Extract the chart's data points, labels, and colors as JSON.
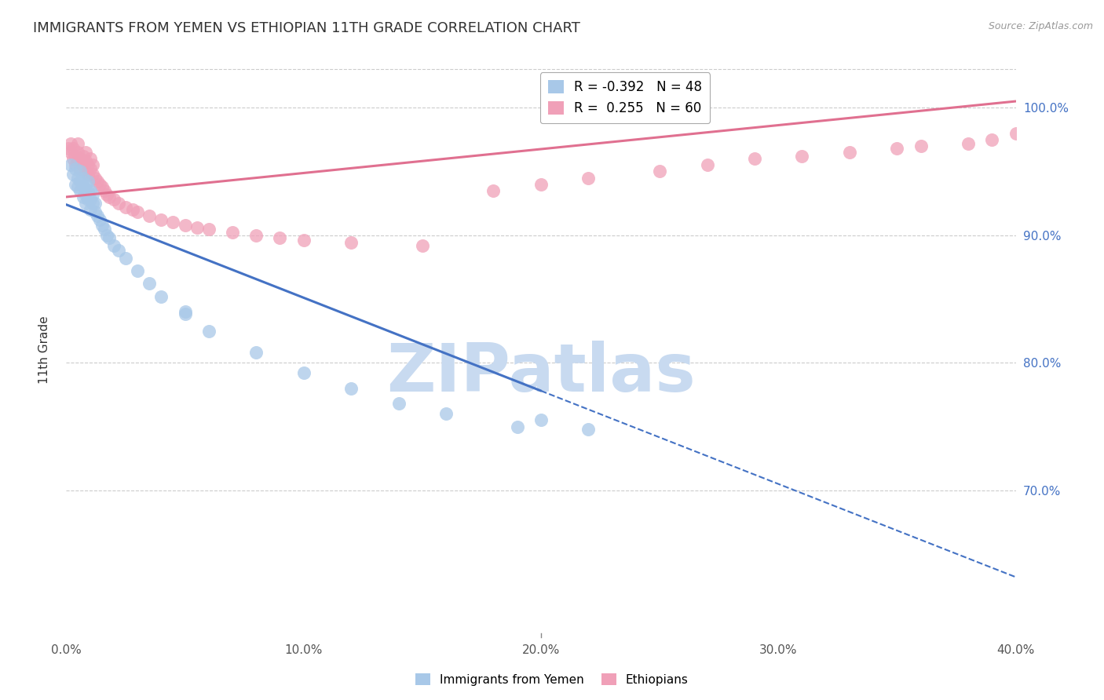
{
  "title": "IMMIGRANTS FROM YEMEN VS ETHIOPIAN 11TH GRADE CORRELATION CHART",
  "source": "Source: ZipAtlas.com",
  "ylabel": "11th Grade",
  "xmin": 0.0,
  "xmax": 0.4,
  "ymin": 0.585,
  "ymax": 1.035,
  "yticks": [
    0.7,
    0.8,
    0.9,
    1.0
  ],
  "ytick_labels": [
    "70.0%",
    "80.0%",
    "90.0%",
    "100.0%"
  ],
  "xticks": [
    0.0,
    0.1,
    0.2,
    0.3,
    0.4
  ],
  "xtick_labels": [
    "0.0%",
    "10.0%",
    "20.0%",
    "30.0%",
    "40.0%"
  ],
  "blue_label": "Immigrants from Yemen",
  "pink_label": "Ethiopians",
  "blue_R": -0.392,
  "blue_N": 48,
  "pink_R": 0.255,
  "pink_N": 60,
  "blue_color": "#a8c8e8",
  "pink_color": "#f0a0b8",
  "blue_line_color": "#4472c4",
  "pink_line_color": "#e07090",
  "watermark": "ZIPatlas",
  "watermark_color": "#c8daf0",
  "blue_line_x0": 0.0,
  "blue_line_y0": 0.924,
  "blue_line_x1": 0.2,
  "blue_line_y1": 0.778,
  "blue_line_x2": 0.4,
  "blue_line_y2": 0.632,
  "pink_line_x0": 0.0,
  "pink_line_y0": 0.93,
  "pink_line_x1": 0.4,
  "pink_line_y1": 1.005,
  "blue_scatter_x": [
    0.002,
    0.003,
    0.004,
    0.004,
    0.005,
    0.005,
    0.006,
    0.006,
    0.006,
    0.007,
    0.007,
    0.007,
    0.008,
    0.008,
    0.008,
    0.009,
    0.009,
    0.009,
    0.01,
    0.01,
    0.01,
    0.011,
    0.011,
    0.012,
    0.012,
    0.013,
    0.014,
    0.015,
    0.016,
    0.017,
    0.018,
    0.02,
    0.022,
    0.025,
    0.03,
    0.035,
    0.04,
    0.05,
    0.06,
    0.08,
    0.1,
    0.14,
    0.16,
    0.19,
    0.05,
    0.12,
    0.2,
    0.22
  ],
  "blue_scatter_y": [
    0.955,
    0.948,
    0.952,
    0.94,
    0.938,
    0.945,
    0.935,
    0.942,
    0.95,
    0.93,
    0.938,
    0.945,
    0.925,
    0.932,
    0.94,
    0.928,
    0.935,
    0.942,
    0.92,
    0.928,
    0.935,
    0.925,
    0.932,
    0.918,
    0.925,
    0.915,
    0.912,
    0.908,
    0.905,
    0.9,
    0.898,
    0.892,
    0.888,
    0.882,
    0.872,
    0.862,
    0.852,
    0.838,
    0.825,
    0.808,
    0.792,
    0.768,
    0.76,
    0.75,
    0.84,
    0.78,
    0.755,
    0.748
  ],
  "pink_scatter_x": [
    0.001,
    0.002,
    0.002,
    0.003,
    0.003,
    0.004,
    0.004,
    0.005,
    0.005,
    0.005,
    0.006,
    0.006,
    0.007,
    0.007,
    0.008,
    0.008,
    0.008,
    0.009,
    0.009,
    0.01,
    0.01,
    0.011,
    0.011,
    0.012,
    0.013,
    0.014,
    0.015,
    0.016,
    0.017,
    0.018,
    0.02,
    0.022,
    0.025,
    0.028,
    0.03,
    0.035,
    0.04,
    0.045,
    0.05,
    0.055,
    0.06,
    0.07,
    0.08,
    0.09,
    0.1,
    0.12,
    0.15,
    0.18,
    0.2,
    0.22,
    0.25,
    0.27,
    0.29,
    0.31,
    0.33,
    0.35,
    0.36,
    0.38,
    0.39,
    0.4
  ],
  "pink_scatter_y": [
    0.968,
    0.972,
    0.965,
    0.96,
    0.968,
    0.955,
    0.962,
    0.958,
    0.965,
    0.972,
    0.952,
    0.96,
    0.955,
    0.962,
    0.95,
    0.958,
    0.965,
    0.948,
    0.955,
    0.952,
    0.96,
    0.948,
    0.955,
    0.945,
    0.942,
    0.94,
    0.938,
    0.935,
    0.932,
    0.93,
    0.928,
    0.925,
    0.922,
    0.92,
    0.918,
    0.915,
    0.912,
    0.91,
    0.908,
    0.906,
    0.905,
    0.902,
    0.9,
    0.898,
    0.896,
    0.894,
    0.892,
    0.935,
    0.94,
    0.945,
    0.95,
    0.955,
    0.96,
    0.962,
    0.965,
    0.968,
    0.97,
    0.972,
    0.975,
    0.98
  ],
  "title_fontsize": 13,
  "axis_label_fontsize": 11,
  "tick_fontsize": 11,
  "legend_fontsize": 12
}
